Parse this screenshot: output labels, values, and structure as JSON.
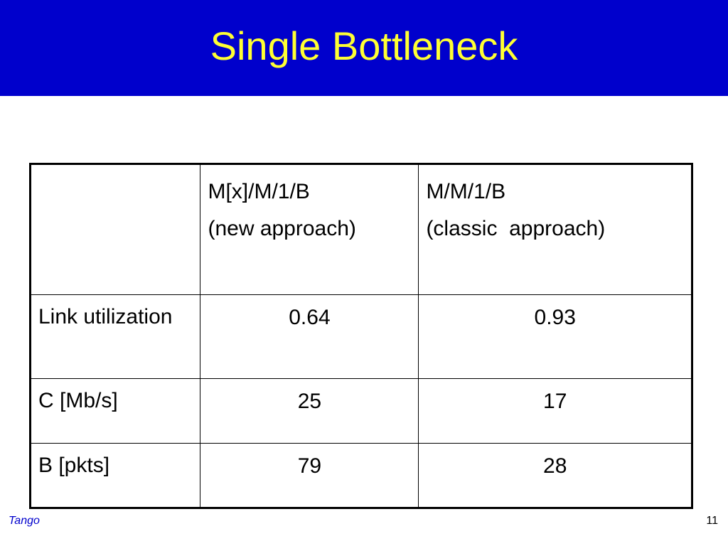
{
  "slide": {
    "title": "Single Bottleneck",
    "footer_left": "Tango",
    "page_number": "11"
  },
  "table": {
    "header": {
      "col0": "",
      "col1_line1": "M[x]/M/1/B",
      "col1_line2": "(new approach)",
      "col2_line1": "M/M/1/B",
      "col2_line2": "(classic  approach)"
    },
    "rows": [
      {
        "label": "Link utilization",
        "new": "0.64",
        "classic": "0.93"
      },
      {
        "label": "C [Mb/s]",
        "new": "25",
        "classic": "17"
      },
      {
        "label": "B [pkts]",
        "new": "79",
        "classic": "28"
      }
    ]
  },
  "colors": {
    "title_band": "#0000cc",
    "title_text": "#ffff33",
    "footer_left_text": "#0000cc"
  }
}
